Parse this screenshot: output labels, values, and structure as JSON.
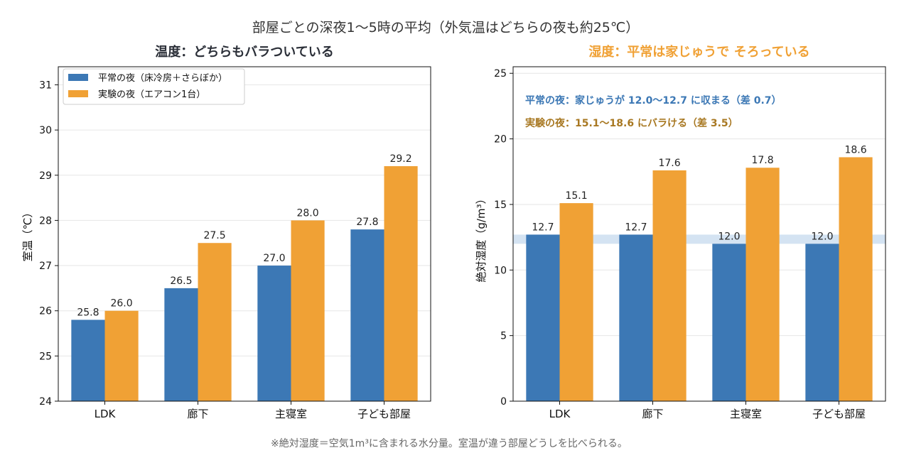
{
  "figure": {
    "title": "部屋ごとの深夜1〜5時の平均（外気温はどちらの夜も約25℃）",
    "footnote": "※絶対湿度＝空気1m³に含まれる水分量。室温が違う部屋どうしを比べられる。"
  },
  "colors": {
    "normal": "#3c78b5",
    "experiment": "#f0a135",
    "band": "#c6d9ee",
    "left_title": "#2b2f38",
    "right_title": "#f0a135",
    "annot_normal": "#3c78b5",
    "annot_experiment": "#a87822"
  },
  "chart_data": [
    {
      "type": "bar",
      "title": "温度：どちらもバラついている",
      "xlabel": "",
      "ylabel": "室温（℃）",
      "ylim": [
        24,
        31.4
      ],
      "yticks": [
        24,
        25,
        26,
        27,
        28,
        29,
        30,
        31
      ],
      "categories": [
        "LDK",
        "廊下",
        "主寝室",
        "子ども部屋"
      ],
      "series": [
        {
          "name": "平常の夜（床冷房＋さらぼか）",
          "values": [
            25.8,
            26.5,
            27.0,
            27.8
          ],
          "labels": [
            "25.8",
            "26.5",
            "27.0",
            "27.8"
          ]
        },
        {
          "name": "実験の夜（エアコン1台）",
          "values": [
            26.0,
            27.5,
            28.0,
            29.2
          ],
          "labels": [
            "26.0",
            "27.5",
            "28.0",
            "29.2"
          ]
        }
      ],
      "legend": "top-left",
      "grid": true
    },
    {
      "type": "bar",
      "title": "湿度：平常は家じゅうで そろっている",
      "xlabel": "",
      "ylabel": "絶対湿度（g/m³）",
      "ylim": [
        0,
        25.5
      ],
      "yticks": [
        0,
        5,
        10,
        15,
        20,
        25
      ],
      "categories": [
        "LDK",
        "廊下",
        "主寝室",
        "子ども部屋"
      ],
      "series": [
        {
          "values": [
            12.7,
            12.7,
            12.0,
            12.0
          ],
          "labels": [
            "12.7",
            "12.7",
            "12.0",
            "12.0"
          ]
        },
        {
          "values": [
            15.1,
            17.6,
            17.8,
            18.6
          ],
          "labels": [
            "15.1",
            "17.6",
            "17.8",
            "18.6"
          ]
        }
      ],
      "band": [
        12.0,
        12.7
      ],
      "annotations": [
        "平常の夜：家じゅうが 12.0〜12.7 に収まる（差 0.7）",
        "実験の夜：15.1〜18.6 にバラける（差 3.5）"
      ],
      "grid": true
    }
  ]
}
